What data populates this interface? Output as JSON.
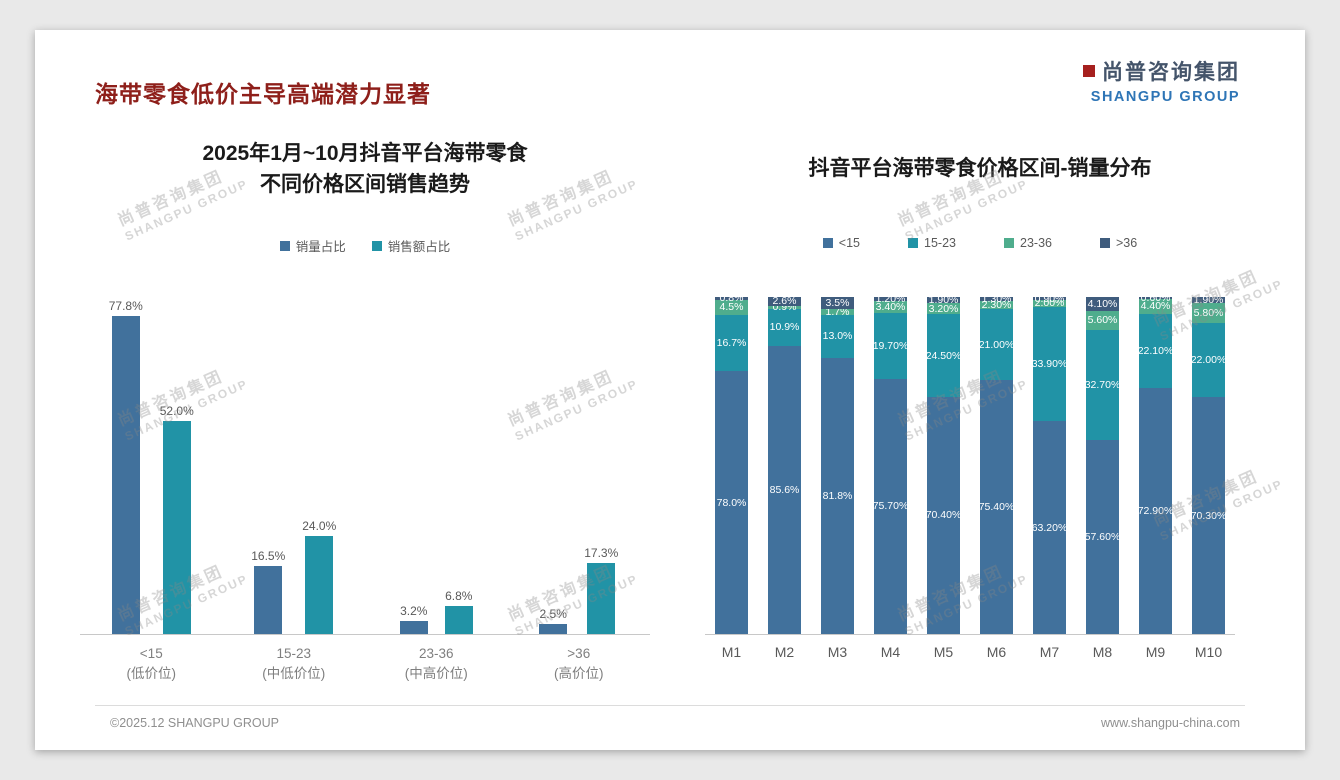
{
  "page": {
    "title": "海带零食低价主导高端潜力显著",
    "footer_left": "©2025.12 SHANGPU GROUP",
    "footer_right": "www.shangpu-china.com",
    "logo": {
      "cn": "尚普咨询集团",
      "en": "SHANGPU GROUP"
    },
    "watermark": {
      "cn": "尚普咨询集团",
      "en": "SHANGPU GROUP"
    }
  },
  "colors": {
    "title_red": "#8E1F1A",
    "logo_cn": "#44546A",
    "logo_en": "#2E75B6",
    "logo_mark": "#A6201E",
    "series_blue": "#41719C",
    "series_teal": "#2193A6",
    "series_green": "#4FAD8D",
    "series_dark": "#3F5C7D"
  },
  "chart_data": [
    {
      "type": "bar",
      "stacked": false,
      "title_lines": [
        "2025年1月~10月抖音平台海带零食",
        "不同价格区间销售趋势"
      ],
      "title": "2025年1月~10月抖音平台海带零食 不同价格区间销售趋势",
      "legend_position": "top",
      "grid": false,
      "ylim": [
        0,
        82
      ],
      "categories": [
        {
          "range": "<15",
          "tier": "(低价位)"
        },
        {
          "range": "15-23",
          "tier": "(中低价位)"
        },
        {
          "range": "23-36",
          "tier": "(中高价位)"
        },
        {
          "range": ">36",
          "tier": "(高价位)"
        }
      ],
      "series": [
        {
          "name": "销量占比",
          "color": "#41719C",
          "values": [
            77.8,
            16.5,
            3.2,
            2.5
          ],
          "labels": [
            "77.8%",
            "16.5%",
            "3.2%",
            "2.5%"
          ]
        },
        {
          "name": "销售额占比",
          "color": "#2193A6",
          "values": [
            52.0,
            24.0,
            6.8,
            17.3
          ],
          "labels": [
            "52.0%",
            "24.0%",
            "6.8%",
            "17.3%"
          ]
        }
      ]
    },
    {
      "type": "bar",
      "stacked": true,
      "title": "抖音平台海带零食价格区间-销量分布",
      "legend_position": "top",
      "grid": false,
      "ylim": [
        0,
        100
      ],
      "categories": [
        "M1",
        "M2",
        "M3",
        "M4",
        "M5",
        "M6",
        "M7",
        "M8",
        "M9",
        "M10"
      ],
      "series": [
        {
          "name": "<15",
          "color": "#41719C",
          "values": [
            78.0,
            85.6,
            81.8,
            75.7,
            70.4,
            75.4,
            63.2,
            57.6,
            72.9,
            70.3
          ],
          "labels": [
            "78.0%",
            "85.6%",
            "81.8%",
            "75.70%",
            "70.40%",
            "75.40%",
            "63.20%",
            "57.60%",
            "72.90%",
            "70.30%"
          ]
        },
        {
          "name": "15-23",
          "color": "#2193A6",
          "values": [
            16.7,
            10.9,
            13.0,
            19.7,
            24.5,
            21.0,
            33.9,
            32.7,
            22.1,
            22.0
          ],
          "labels": [
            "16.7%",
            "10.9%",
            "13.0%",
            "19.70%",
            "24.50%",
            "21.00%",
            "33.90%",
            "32.70%",
            "22.10%",
            "22.00%"
          ]
        },
        {
          "name": "23-36",
          "color": "#4FAD8D",
          "values": [
            4.5,
            0.9,
            1.7,
            3.4,
            3.2,
            2.3,
            2.0,
            5.6,
            4.4,
            5.8
          ],
          "labels": [
            "4.5%",
            "0.9%",
            "1.7%",
            "3.40%",
            "3.20%",
            "2.30%",
            "2.00%",
            "5.60%",
            "4.40%",
            "5.80%"
          ]
        },
        {
          "name": ">36",
          "color": "#3F5C7D",
          "values": [
            0.8,
            2.6,
            3.5,
            1.2,
            1.9,
            1.3,
            0.9,
            4.1,
            0.6,
            1.9
          ],
          "labels": [
            "0.8%",
            "2.6%",
            "3.5%",
            "1.20%",
            "1.90%",
            "1.30%",
            "0.90%",
            "4.10%",
            "0.60%",
            "1.90%"
          ]
        }
      ]
    }
  ]
}
